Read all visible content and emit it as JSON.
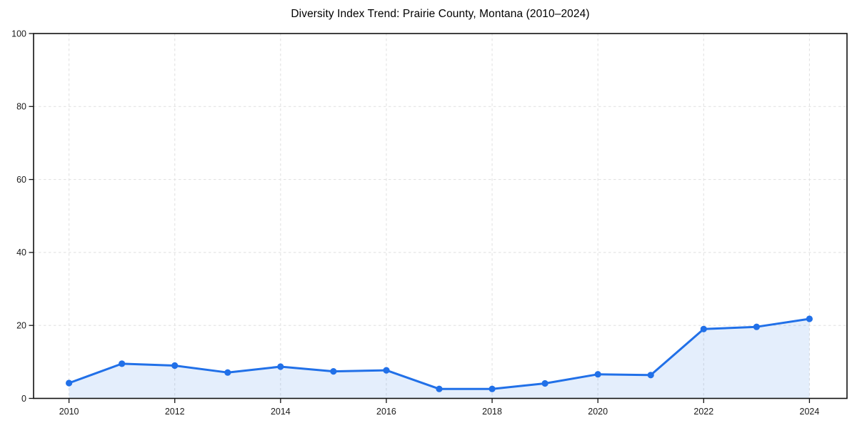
{
  "page": {
    "background": "#ffffff"
  },
  "chart_data": {
    "type": "area",
    "title": "Diversity Index Trend: Prairie County, Montana (2010–2024)",
    "x": [
      2010,
      2011,
      2012,
      2013,
      2014,
      2015,
      2016,
      2017,
      2018,
      2019,
      2020,
      2021,
      2022,
      2023,
      2024
    ],
    "series": [
      {
        "name": "Diversity Index",
        "values": [
          4.2,
          9.5,
          9.0,
          7.1,
          8.7,
          7.4,
          7.7,
          2.6,
          2.6,
          4.1,
          6.6,
          6.4,
          19.0,
          19.6,
          21.8
        ]
      }
    ],
    "xlabel": "",
    "ylabel": "",
    "xlim": [
      2009.33,
      2024.71
    ],
    "ylim": [
      0,
      100
    ],
    "xticks": [
      2010,
      2012,
      2014,
      2016,
      2018,
      2020,
      2022,
      2024
    ],
    "yticks": [
      0,
      20,
      40,
      60,
      80,
      100
    ],
    "grid": "dashed",
    "legend": "none",
    "marker": "circle",
    "colors": {
      "line": "#2170e8",
      "marker": "#2170e8",
      "fill": "#2170e8",
      "fill_opacity": 0.12,
      "grid": "#e2e2e2",
      "border": "#111111",
      "tick_text": "#1a1a1a",
      "title_text": "#000000",
      "background": "#ffffff"
    }
  }
}
